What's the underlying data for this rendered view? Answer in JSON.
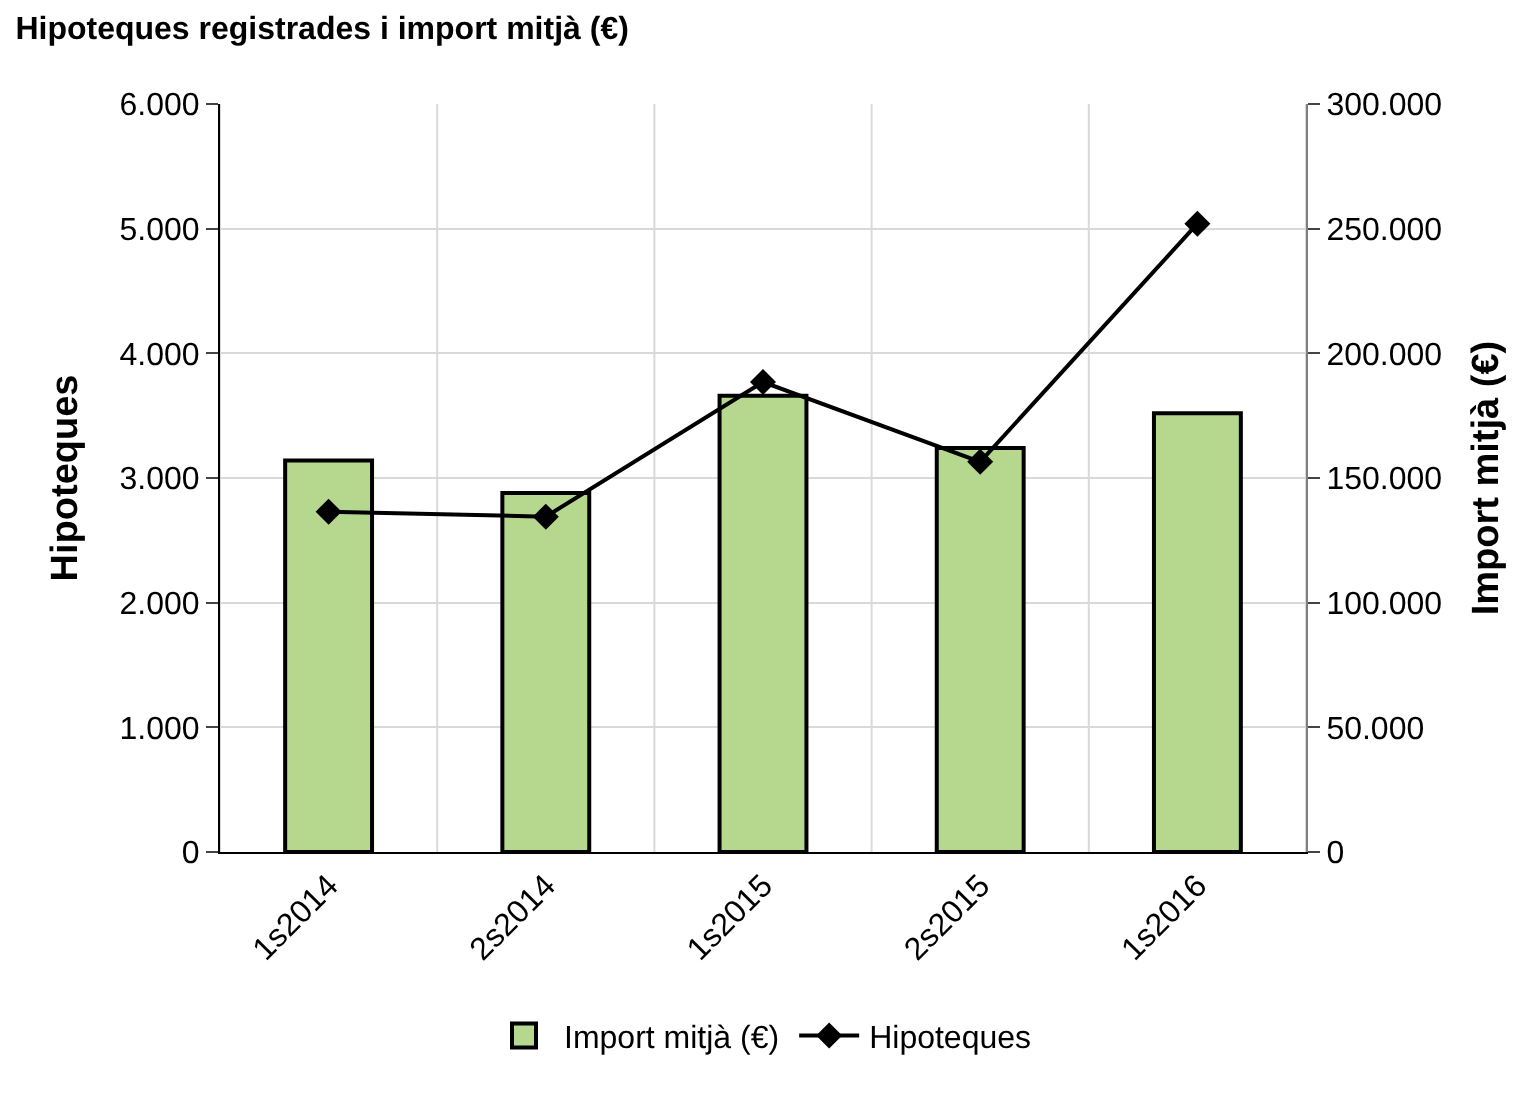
{
  "chart_data": {
    "type": "bar",
    "title": "Hipoteques registrades i import mitjà (€)",
    "ylabel": "Hipoteques",
    "y2label": "Import mitjà (€)",
    "categories": [
      "1s2014",
      "2s2014",
      "1s2015",
      "2s2015",
      "1s2016"
    ],
    "series": [
      {
        "name": "Import mitjà (€)",
        "axis": "y2",
        "color": "#b5d78e",
        "values": [
          157000,
          144000,
          183000,
          162000,
          176000
        ]
      },
      {
        "name": "Hipoteques",
        "type": "line",
        "color": "#000000",
        "marker": "diamond",
        "values": [
          2730,
          2690,
          3770,
          3130,
          5040
        ]
      }
    ],
    "ylim": [
      0,
      6000
    ],
    "yticks": [
      0,
      {
        "value": 1000,
        "label": "1.000"
      },
      {
        "value": 2000,
        "label": "2.000"
      },
      {
        "value": 3000,
        "label": "3.000"
      },
      {
        "value": 4000,
        "label": "4.000"
      },
      {
        "value": 5000,
        "label": "5.000"
      },
      {
        "value": 6000,
        "label": "6.000"
      }
    ],
    "y2lim": [
      0,
      300000
    ],
    "y2ticks": [
      0,
      {
        "value": 50000,
        "label": "50.000"
      },
      {
        "value": 100000,
        "label": "100.000"
      },
      {
        "value": 150000,
        "label": "150.000"
      },
      {
        "value": 200000,
        "label": "200.000"
      },
      {
        "value": 250000,
        "label": "250.000"
      },
      {
        "value": 300000,
        "label": "300.000"
      }
    ],
    "grid": true,
    "legend": "bottom"
  }
}
